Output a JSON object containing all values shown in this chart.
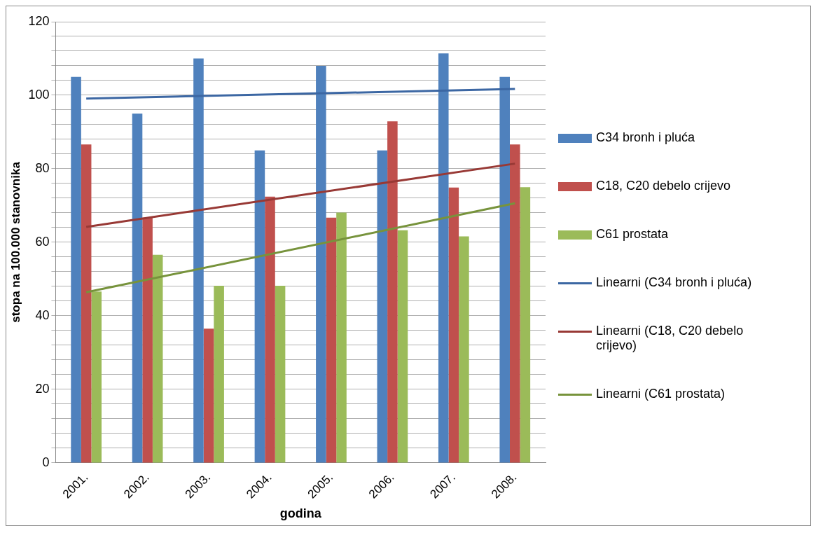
{
  "chart_data": {
    "type": "bar",
    "xlabel": "godina",
    "ylabel": "stopa na 100.000 stanovnika",
    "categories": [
      "2001.",
      "2002.",
      "2003.",
      "2004.",
      "2005.",
      "2006.",
      "2007.",
      "2008."
    ],
    "series": [
      {
        "name": "C34 bronh i pluća",
        "color": "#4f81bd",
        "values": [
          105,
          95,
          110,
          85,
          108,
          85,
          111.4,
          105
        ]
      },
      {
        "name": "C18, C20 debelo crijevo",
        "color": "#c0504d",
        "values": [
          86.6,
          66.7,
          36.5,
          72.4,
          66.7,
          92.9,
          74.9,
          86.6
        ]
      },
      {
        "name": "C61 prostata",
        "color": "#9bbb59",
        "values": [
          46.6,
          56.6,
          48.2,
          48.2,
          68.1,
          63.3,
          61.6,
          75
        ]
      },
      {
        "name": "Linearni (C34 bronh i pluća)",
        "type": "line",
        "color": "#3c67a3",
        "values": [
          99.1,
          null,
          null,
          null,
          null,
          null,
          null,
          101.7
        ]
      },
      {
        "name": "Linearni (C18, C20 debelo crijevo)",
        "type": "line",
        "color": "#983935",
        "values": [
          64.2,
          null,
          null,
          null,
          null,
          null,
          null,
          81.4
        ]
      },
      {
        "name": "Linearni (C61 prostata)",
        "type": "line",
        "color": "#77933c",
        "values": [
          46.4,
          null,
          null,
          null,
          null,
          null,
          null,
          70.6
        ]
      }
    ],
    "ylim": [
      0,
      120
    ],
    "yticks": [
      0,
      {
        "value": 4,
        "label": null
      },
      {
        "value": 8,
        "label": null
      },
      {
        "value": 12,
        "label": null
      },
      {
        "value": 16,
        "label": null
      },
      20,
      {
        "value": 24,
        "label": null
      },
      {
        "value": 28,
        "label": null
      },
      {
        "value": 32,
        "label": null
      },
      {
        "value": 36,
        "label": null
      },
      40,
      {
        "value": 44,
        "label": null
      },
      {
        "value": 48,
        "label": null
      },
      {
        "value": 52,
        "label": null
      },
      {
        "value": 56,
        "label": null
      },
      60,
      {
        "value": 64,
        "label": null
      },
      {
        "value": 68,
        "label": null
      },
      {
        "value": 72,
        "label": null
      },
      {
        "value": 76,
        "label": null
      },
      80,
      {
        "value": 84,
        "label": null
      },
      {
        "value": 88,
        "label": null
      },
      {
        "value": 92,
        "label": null
      },
      {
        "value": 96,
        "label": null
      },
      100,
      {
        "value": 104,
        "label": null
      },
      {
        "value": 108,
        "label": null
      },
      {
        "value": 112,
        "label": null
      },
      {
        "value": 116,
        "label": null
      },
      120
    ],
    "grid": "y",
    "legend": "right",
    "marker": "none",
    "line_style": "solid"
  }
}
